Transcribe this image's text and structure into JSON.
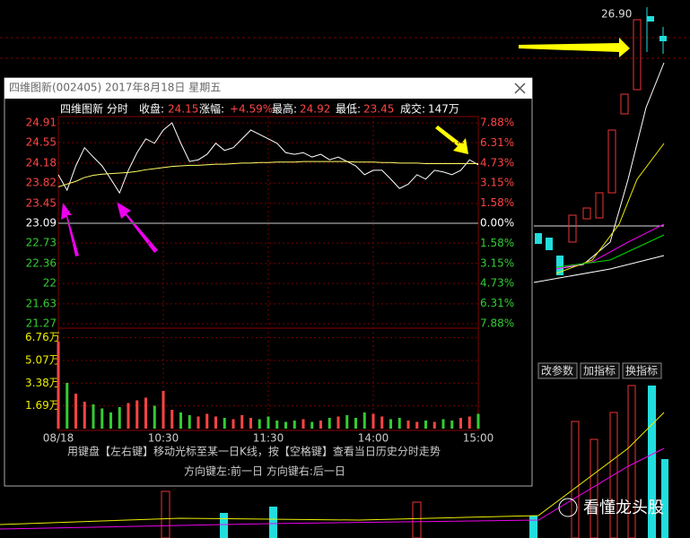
{
  "screen": {
    "high_label": "26.90",
    "buttons": [
      "改参数",
      "加指标",
      "换指标"
    ],
    "watermark": "看懂龙头股"
  },
  "window": {
    "title": "四维图新(002405) 2017年8月18日 星期五",
    "info": [
      "四维图新 分时",
      "收盘:",
      "24.15",
      "涨幅:",
      "+4.59%",
      "最高:",
      "24.92",
      "最低:",
      "23.45",
      "成交:",
      "147万"
    ],
    "footer": [
      "用键盘【左右键】移动光标至某一日K线，按【空格键】查看当日历史分时走势",
      "方向键左:前一日    方向键右:后一日"
    ]
  },
  "chart_data": {
    "type": "line",
    "x": [
      0,
      5,
      10,
      15,
      20,
      25,
      30,
      35,
      40,
      45,
      50,
      55,
      60,
      65,
      70,
      75,
      80,
      85,
      90,
      95,
      100,
      105,
      110,
      115,
      120,
      125,
      130,
      135,
      140,
      145,
      150,
      155,
      160,
      165,
      170,
      175,
      180,
      185,
      190,
      195,
      200,
      205,
      210,
      215,
      220,
      225,
      230,
      235,
      240
    ],
    "xlim": [
      0,
      240
    ],
    "xticks": [
      {
        "value": 0,
        "label": "08/18"
      },
      {
        "value": 60,
        "label": "10:30"
      },
      {
        "value": 120,
        "label": "11:30"
      },
      {
        "value": 180,
        "label": "14:00"
      },
      {
        "value": 240,
        "label": "15:00"
      }
    ],
    "ylim": [
      21.27,
      24.91
    ],
    "yticks": [
      24.91,
      24.55,
      24.18,
      23.82,
      23.45,
      23.09,
      22.73,
      22.36,
      22.0,
      21.63,
      21.27
    ],
    "y2lim": [
      -7.88,
      7.88
    ],
    "y2ticks": [
      {
        "value": 7.88,
        "label": "7.88%"
      },
      {
        "value": 6.31,
        "label": "6.31%"
      },
      {
        "value": 4.73,
        "label": "4.73%"
      },
      {
        "value": 3.15,
        "label": "3.15%"
      },
      {
        "value": 1.58,
        "label": "1.58%"
      },
      {
        "value": 0,
        "label": "0.00%"
      },
      {
        "value": -1.58,
        "label": "1.58%"
      },
      {
        "value": -3.15,
        "label": "3.15%"
      },
      {
        "value": -4.73,
        "label": "4.73%"
      },
      {
        "value": -6.31,
        "label": "6.31%"
      },
      {
        "value": -7.88,
        "label": "7.88%"
      }
    ],
    "grid": true,
    "series": [
      {
        "color": "#ffffff",
        "values": [
          23.97,
          23.69,
          24.13,
          24.46,
          24.29,
          24.13,
          23.89,
          23.64,
          24.05,
          24.37,
          24.62,
          24.54,
          24.78,
          24.91,
          24.54,
          24.21,
          24.24,
          24.34,
          24.54,
          24.41,
          24.46,
          24.62,
          24.78,
          24.7,
          24.62,
          24.54,
          24.37,
          24.34,
          24.37,
          24.29,
          24.34,
          24.24,
          24.29,
          24.21,
          24.13,
          23.97,
          24.05,
          24.05,
          23.89,
          23.72,
          23.8,
          23.97,
          23.89,
          24.05,
          24.02,
          23.97,
          24.05,
          24.24,
          24.15
        ]
      },
      {
        "color": "#ffff66",
        "values": [
          23.75,
          23.8,
          23.85,
          23.92,
          23.96,
          23.98,
          23.99,
          24.0,
          24.01,
          24.03,
          24.06,
          24.08,
          24.1,
          24.12,
          24.13,
          24.14,
          24.14,
          24.15,
          24.16,
          24.16,
          24.17,
          24.18,
          24.18,
          24.19,
          24.19,
          24.2,
          24.2,
          24.2,
          24.21,
          24.21,
          24.21,
          24.21,
          24.21,
          24.21,
          24.2,
          24.2,
          24.2,
          24.19,
          24.19,
          24.18,
          24.18,
          24.18,
          24.17,
          24.17,
          24.17,
          24.17,
          24.17,
          24.17,
          24.17
        ]
      }
    ],
    "volume": {
      "ylim": [
        0,
        7.2
      ],
      "yticks": [
        {
          "value": 6.76,
          "label": "6.76万"
        },
        {
          "value": 5.07,
          "label": "5.07万"
        },
        {
          "value": 3.38,
          "label": "3.38万"
        },
        {
          "value": 1.69,
          "label": "1.69万"
        }
      ],
      "values": [
        6.5,
        3.4,
        2.6,
        2.0,
        1.8,
        1.5,
        1.2,
        1.6,
        1.9,
        2.1,
        2.3,
        1.7,
        2.8,
        1.4,
        1.2,
        1.0,
        0.9,
        1.1,
        0.9,
        0.8,
        0.7,
        1.0,
        0.8,
        0.7,
        0.9,
        0.6,
        0.5,
        0.6,
        0.7,
        0.5,
        0.6,
        0.8,
        0.9,
        1.0,
        0.8,
        1.2,
        1.1,
        0.9,
        0.7,
        0.8,
        0.6,
        0.5,
        0.6,
        0.5,
        0.7,
        0.6,
        0.8,
        0.9,
        1.1
      ]
    }
  }
}
